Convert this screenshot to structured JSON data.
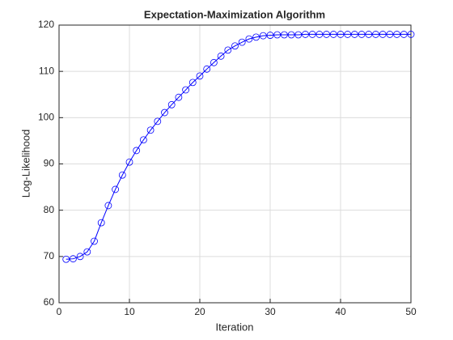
{
  "chart_data": {
    "type": "line",
    "title": "Expectation-Maximization Algorithm",
    "x_label": "Iteration",
    "y_label": "Log-Likelihood",
    "x": [
      1,
      2,
      3,
      4,
      5,
      6,
      7,
      8,
      9,
      10,
      11,
      12,
      13,
      14,
      15,
      16,
      17,
      18,
      19,
      20,
      21,
      22,
      23,
      24,
      25,
      26,
      27,
      28,
      29,
      30,
      31,
      32,
      33,
      34,
      35,
      36,
      37,
      38,
      39,
      40,
      41,
      42,
      43,
      44,
      45,
      46,
      47,
      48,
      49,
      50
    ],
    "series": [
      {
        "name": "Log-Likelihood",
        "color": "#0000ff",
        "marker": "circle",
        "values": [
          69.4,
          69.5,
          70.0,
          71.0,
          73.3,
          77.3,
          81.0,
          84.5,
          87.6,
          90.4,
          92.9,
          95.2,
          97.3,
          99.2,
          101.1,
          102.8,
          104.4,
          106.0,
          107.6,
          109.0,
          110.5,
          111.9,
          113.3,
          114.6,
          115.5,
          116.3,
          117.0,
          117.4,
          117.7,
          117.8,
          117.9,
          117.9,
          117.9,
          117.9,
          118.0,
          118.0,
          118.0,
          118.0,
          118.0,
          118.0,
          118.0,
          118.0,
          118.0,
          118.0,
          118.0,
          118.0,
          118.0,
          118.0,
          118.0,
          118.0
        ]
      }
    ],
    "xlim": [
      0,
      50
    ],
    "xticks": [
      0,
      10,
      20,
      30,
      40,
      50
    ],
    "ylim": [
      60,
      120
    ],
    "yticks": [
      60,
      70,
      80,
      90,
      100,
      110,
      120
    ],
    "grid": true
  }
}
